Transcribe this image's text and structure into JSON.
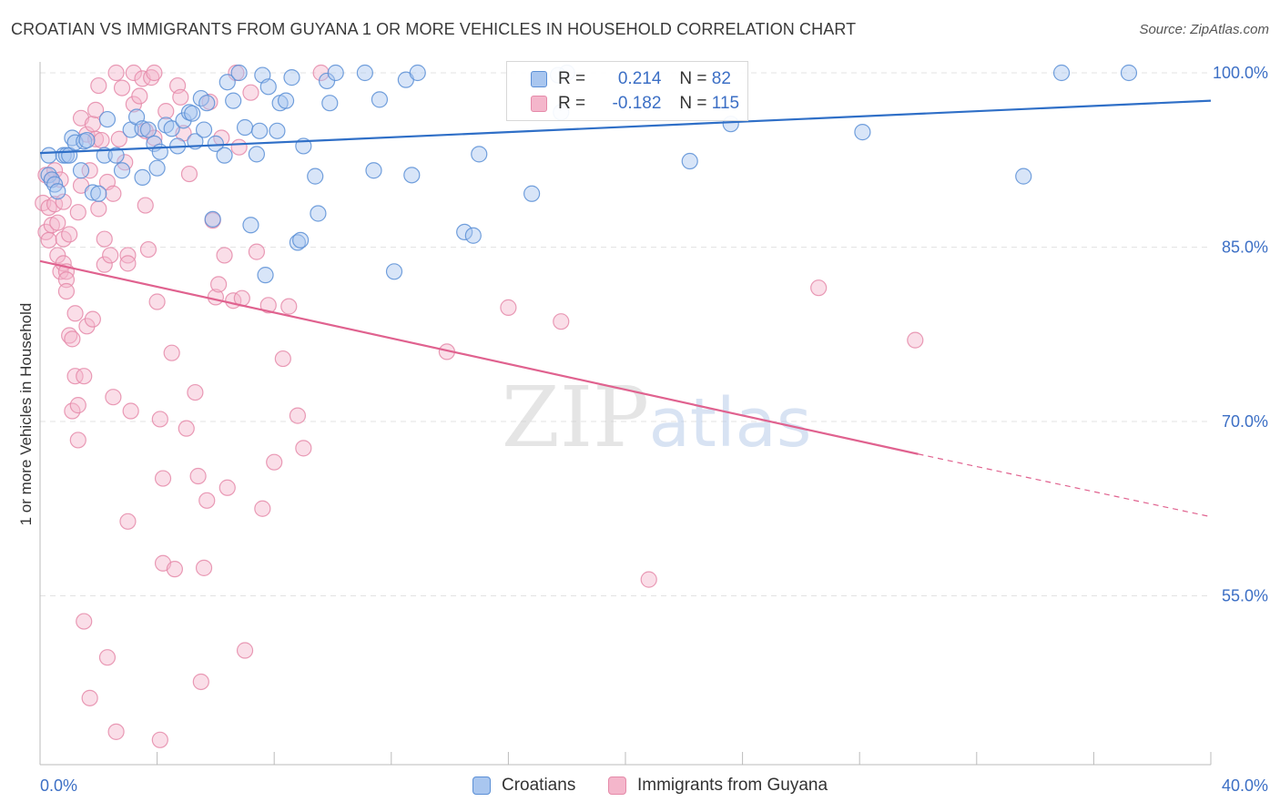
{
  "header": {
    "title": "CROATIAN VS IMMIGRANTS FROM GUYANA 1 OR MORE VEHICLES IN HOUSEHOLD CORRELATION CHART",
    "source": "Source: ZipAtlas.com"
  },
  "colors": {
    "blue_fill": "#a9c6ef",
    "blue_stroke": "#5b8fd6",
    "blue_line": "#2f6fc7",
    "pink_fill": "#f4b6cb",
    "pink_stroke": "#e58aa9",
    "pink_line": "#e0628f",
    "axis_text": "#3c6fc5",
    "grid": "#e3e3e3"
  },
  "legend": {
    "rows": [
      {
        "r_label": "R =",
        "r_value": "0.214",
        "n_label": "N =",
        "n_value": "82"
      },
      {
        "r_label": "R =",
        "r_value": "-0.182",
        "n_label": "N =",
        "n_value": "115"
      }
    ],
    "bottom": [
      {
        "label": "Croatians"
      },
      {
        "label": "Immigrants from Guyana"
      }
    ]
  },
  "watermark": {
    "zip": "ZIP",
    "atlas": "atlas"
  },
  "chart_data": {
    "type": "scatter",
    "title": "CROATIAN VS IMMIGRANTS FROM GUYANA 1 OR MORE VEHICLES IN HOUSEHOLD CORRELATION CHART",
    "xlabel": "",
    "ylabel": "1 or more Vehicles in Household",
    "xlim": [
      0,
      40
    ],
    "ylim": [
      42,
      101
    ],
    "x_tick_labels": [
      {
        "value": 0,
        "label": "0.0%"
      },
      {
        "value": 40,
        "label": "40.0%"
      }
    ],
    "y_tick_labels": [
      {
        "value": 100,
        "label": "100.0%"
      },
      {
        "value": 85,
        "label": "85.0%"
      },
      {
        "value": 70,
        "label": "70.0%"
      },
      {
        "value": 55,
        "label": "55.0%"
      }
    ],
    "grid": true,
    "series": [
      {
        "name": "Croatians",
        "r": 0.214,
        "n": 82,
        "trend": {
          "x0": 0,
          "y0": 93.1,
          "x1": 40,
          "y1": 97.6
        },
        "points": [
          [
            0.3,
            92.9
          ],
          [
            0.3,
            91.2
          ],
          [
            0.4,
            90.8
          ],
          [
            0.5,
            90.4
          ],
          [
            0.6,
            89.8
          ],
          [
            0.8,
            92.9
          ],
          [
            0.9,
            92.9
          ],
          [
            1.0,
            92.9
          ],
          [
            1.1,
            94.4
          ],
          [
            1.2,
            94.0
          ],
          [
            1.4,
            91.6
          ],
          [
            1.5,
            94.1
          ],
          [
            1.6,
            94.2
          ],
          [
            1.8,
            89.7
          ],
          [
            2.0,
            89.6
          ],
          [
            2.2,
            92.9
          ],
          [
            2.3,
            96.0
          ],
          [
            2.6,
            92.9
          ],
          [
            2.8,
            91.6
          ],
          [
            3.1,
            95.1
          ],
          [
            3.3,
            96.2
          ],
          [
            3.5,
            95.2
          ],
          [
            3.5,
            91.0
          ],
          [
            3.7,
            95.1
          ],
          [
            3.9,
            93.9
          ],
          [
            4.0,
            91.8
          ],
          [
            4.1,
            93.2
          ],
          [
            4.3,
            95.5
          ],
          [
            4.5,
            95.2
          ],
          [
            4.7,
            93.7
          ],
          [
            4.9,
            95.9
          ],
          [
            5.1,
            96.6
          ],
          [
            5.2,
            96.5
          ],
          [
            5.3,
            94.1
          ],
          [
            5.5,
            97.8
          ],
          [
            5.6,
            95.1
          ],
          [
            5.7,
            97.4
          ],
          [
            5.9,
            87.4
          ],
          [
            6.0,
            93.9
          ],
          [
            6.3,
            92.9
          ],
          [
            6.4,
            99.2
          ],
          [
            6.6,
            97.6
          ],
          [
            6.8,
            100.0
          ],
          [
            7.0,
            95.3
          ],
          [
            7.2,
            86.9
          ],
          [
            7.4,
            93.0
          ],
          [
            7.5,
            95.0
          ],
          [
            7.6,
            99.8
          ],
          [
            7.7,
            82.6
          ],
          [
            7.8,
            98.8
          ],
          [
            8.1,
            95.0
          ],
          [
            8.2,
            97.4
          ],
          [
            8.4,
            97.6
          ],
          [
            8.6,
            99.6
          ],
          [
            8.8,
            85.4
          ],
          [
            8.9,
            85.6
          ],
          [
            9.0,
            93.7
          ],
          [
            9.4,
            91.1
          ],
          [
            9.5,
            87.9
          ],
          [
            9.8,
            99.3
          ],
          [
            9.9,
            97.4
          ],
          [
            10.1,
            100.0
          ],
          [
            11.1,
            100.0
          ],
          [
            11.4,
            91.6
          ],
          [
            11.6,
            97.7
          ],
          [
            12.1,
            82.9
          ],
          [
            12.5,
            99.4
          ],
          [
            12.7,
            91.2
          ],
          [
            12.9,
            100.0
          ],
          [
            14.5,
            86.3
          ],
          [
            14.8,
            86.0
          ],
          [
            15.0,
            93.0
          ],
          [
            16.8,
            89.6
          ],
          [
            17.8,
            96.6
          ],
          [
            18.0,
            100.0
          ],
          [
            22.2,
            92.4
          ],
          [
            23.6,
            95.6
          ],
          [
            28.1,
            94.9
          ],
          [
            33.6,
            91.1
          ],
          [
            34.9,
            100.0
          ],
          [
            37.2,
            100.0
          ],
          [
            17.7,
            99.8
          ]
        ]
      },
      {
        "name": "Immigrants from Guyana",
        "r": -0.182,
        "n": 115,
        "trend": {
          "x0": 0,
          "y0": 83.8,
          "x1": 30.0,
          "y1": 67.2
        },
        "trend_extension": {
          "x0": 30.0,
          "y0": 67.2,
          "x1": 40,
          "y1": 61.8
        },
        "points": [
          [
            0.1,
            88.8
          ],
          [
            0.2,
            91.2
          ],
          [
            0.2,
            86.3
          ],
          [
            0.3,
            88.4
          ],
          [
            0.3,
            85.6
          ],
          [
            0.4,
            90.8
          ],
          [
            0.4,
            86.9
          ],
          [
            0.5,
            91.6
          ],
          [
            0.5,
            88.7
          ],
          [
            0.6,
            84.3
          ],
          [
            0.6,
            87.1
          ],
          [
            0.7,
            90.8
          ],
          [
            0.7,
            82.9
          ],
          [
            0.8,
            83.6
          ],
          [
            0.8,
            88.9
          ],
          [
            0.8,
            85.7
          ],
          [
            0.9,
            82.9
          ],
          [
            0.9,
            82.2
          ],
          [
            0.9,
            81.2
          ],
          [
            1.0,
            77.4
          ],
          [
            1.0,
            86.1
          ],
          [
            1.1,
            70.9
          ],
          [
            1.1,
            77.1
          ],
          [
            1.2,
            73.9
          ],
          [
            1.2,
            79.3
          ],
          [
            1.3,
            88.0
          ],
          [
            1.3,
            71.4
          ],
          [
            1.3,
            68.4
          ],
          [
            1.4,
            96.1
          ],
          [
            1.4,
            90.3
          ],
          [
            1.5,
            52.8
          ],
          [
            1.5,
            73.9
          ],
          [
            1.6,
            78.2
          ],
          [
            1.6,
            94.7
          ],
          [
            1.7,
            91.6
          ],
          [
            1.7,
            46.2
          ],
          [
            1.8,
            95.6
          ],
          [
            1.8,
            78.8
          ],
          [
            1.9,
            94.3
          ],
          [
            1.9,
            96.8
          ],
          [
            2.0,
            98.9
          ],
          [
            2.0,
            88.3
          ],
          [
            2.1,
            94.2
          ],
          [
            2.2,
            85.7
          ],
          [
            2.2,
            83.5
          ],
          [
            2.3,
            90.6
          ],
          [
            2.3,
            49.7
          ],
          [
            2.4,
            84.3
          ],
          [
            2.5,
            89.6
          ],
          [
            2.5,
            72.1
          ],
          [
            2.6,
            43.3
          ],
          [
            2.6,
            100.0
          ],
          [
            2.7,
            94.3
          ],
          [
            2.8,
            98.7
          ],
          [
            2.9,
            92.3
          ],
          [
            3.0,
            84.3
          ],
          [
            3.0,
            83.6
          ],
          [
            3.0,
            61.4
          ],
          [
            3.1,
            70.9
          ],
          [
            3.2,
            97.3
          ],
          [
            3.2,
            100.0
          ],
          [
            3.4,
            98.0
          ],
          [
            3.5,
            99.5
          ],
          [
            3.6,
            95.0
          ],
          [
            3.6,
            88.6
          ],
          [
            3.7,
            84.8
          ],
          [
            3.8,
            99.6
          ],
          [
            3.9,
            94.4
          ],
          [
            3.9,
            100.0
          ],
          [
            4.0,
            80.3
          ],
          [
            4.1,
            70.2
          ],
          [
            4.2,
            65.1
          ],
          [
            4.2,
            57.8
          ],
          [
            4.3,
            96.7
          ],
          [
            4.5,
            75.9
          ],
          [
            4.6,
            57.3
          ],
          [
            4.7,
            98.9
          ],
          [
            4.8,
            97.9
          ],
          [
            4.9,
            94.8
          ],
          [
            5.0,
            69.4
          ],
          [
            5.1,
            91.3
          ],
          [
            5.3,
            72.5
          ],
          [
            5.4,
            65.3
          ],
          [
            5.5,
            47.6
          ],
          [
            5.6,
            57.4
          ],
          [
            5.7,
            63.2
          ],
          [
            5.8,
            97.5
          ],
          [
            5.9,
            87.3
          ],
          [
            6.0,
            80.7
          ],
          [
            6.1,
            81.8
          ],
          [
            6.2,
            94.4
          ],
          [
            6.3,
            84.3
          ],
          [
            6.4,
            64.3
          ],
          [
            6.6,
            80.4
          ],
          [
            6.7,
            100.0
          ],
          [
            6.8,
            93.6
          ],
          [
            6.9,
            80.6
          ],
          [
            7.0,
            50.3
          ],
          [
            7.2,
            98.3
          ],
          [
            7.4,
            84.6
          ],
          [
            7.6,
            62.5
          ],
          [
            7.8,
            80.0
          ],
          [
            8.0,
            66.5
          ],
          [
            8.3,
            75.4
          ],
          [
            8.5,
            79.9
          ],
          [
            8.8,
            70.5
          ],
          [
            9.0,
            67.7
          ],
          [
            9.6,
            100.0
          ],
          [
            13.9,
            76.0
          ],
          [
            16.0,
            79.8
          ],
          [
            17.8,
            78.6
          ],
          [
            20.8,
            56.4
          ],
          [
            26.6,
            81.5
          ],
          [
            29.9,
            77.0
          ],
          [
            4.1,
            42.6
          ]
        ]
      }
    ]
  }
}
